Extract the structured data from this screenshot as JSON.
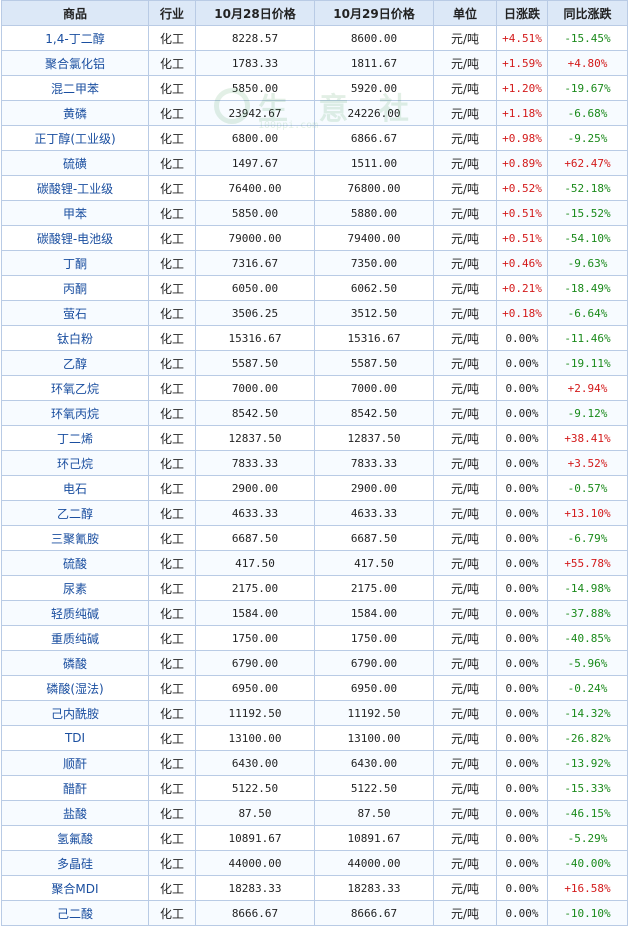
{
  "table": {
    "headers": [
      "商品",
      "行业",
      "10月28日价格",
      "10月29日价格",
      "单位",
      "日涨跌",
      "同比涨跌"
    ],
    "rows": [
      [
        "1,4-丁二醇",
        "化工",
        "8228.57",
        "8600.00",
        "元/吨",
        "+4.51%",
        "-15.45%"
      ],
      [
        "聚合氯化铝",
        "化工",
        "1783.33",
        "1811.67",
        "元/吨",
        "+1.59%",
        "+4.80%"
      ],
      [
        "混二甲苯",
        "化工",
        "5850.00",
        "5920.00",
        "元/吨",
        "+1.20%",
        "-19.67%"
      ],
      [
        "黄磷",
        "化工",
        "23942.67",
        "24226.00",
        "元/吨",
        "+1.18%",
        "-6.68%"
      ],
      [
        "正丁醇(工业级)",
        "化工",
        "6800.00",
        "6866.67",
        "元/吨",
        "+0.98%",
        "-9.25%"
      ],
      [
        "硫磺",
        "化工",
        "1497.67",
        "1511.00",
        "元/吨",
        "+0.89%",
        "+62.47%"
      ],
      [
        "碳酸锂-工业级",
        "化工",
        "76400.00",
        "76800.00",
        "元/吨",
        "+0.52%",
        "-52.18%"
      ],
      [
        "甲苯",
        "化工",
        "5850.00",
        "5880.00",
        "元/吨",
        "+0.51%",
        "-15.52%"
      ],
      [
        "碳酸锂-电池级",
        "化工",
        "79000.00",
        "79400.00",
        "元/吨",
        "+0.51%",
        "-54.10%"
      ],
      [
        "丁酮",
        "化工",
        "7316.67",
        "7350.00",
        "元/吨",
        "+0.46%",
        "-9.63%"
      ],
      [
        "丙酮",
        "化工",
        "6050.00",
        "6062.50",
        "元/吨",
        "+0.21%",
        "-18.49%"
      ],
      [
        "萤石",
        "化工",
        "3506.25",
        "3512.50",
        "元/吨",
        "+0.18%",
        "-6.64%"
      ],
      [
        "钛白粉",
        "化工",
        "15316.67",
        "15316.67",
        "元/吨",
        "0.00%",
        "-11.46%"
      ],
      [
        "乙醇",
        "化工",
        "5587.50",
        "5587.50",
        "元/吨",
        "0.00%",
        "-19.11%"
      ],
      [
        "环氧乙烷",
        "化工",
        "7000.00",
        "7000.00",
        "元/吨",
        "0.00%",
        "+2.94%"
      ],
      [
        "环氧丙烷",
        "化工",
        "8542.50",
        "8542.50",
        "元/吨",
        "0.00%",
        "-9.12%"
      ],
      [
        "丁二烯",
        "化工",
        "12837.50",
        "12837.50",
        "元/吨",
        "0.00%",
        "+38.41%"
      ],
      [
        "环己烷",
        "化工",
        "7833.33",
        "7833.33",
        "元/吨",
        "0.00%",
        "+3.52%"
      ],
      [
        "电石",
        "化工",
        "2900.00",
        "2900.00",
        "元/吨",
        "0.00%",
        "-0.57%"
      ],
      [
        "乙二醇",
        "化工",
        "4633.33",
        "4633.33",
        "元/吨",
        "0.00%",
        "+13.10%"
      ],
      [
        "三聚氰胺",
        "化工",
        "6687.50",
        "6687.50",
        "元/吨",
        "0.00%",
        "-6.79%"
      ],
      [
        "硫酸",
        "化工",
        "417.50",
        "417.50",
        "元/吨",
        "0.00%",
        "+55.78%"
      ],
      [
        "尿素",
        "化工",
        "2175.00",
        "2175.00",
        "元/吨",
        "0.00%",
        "-14.98%"
      ],
      [
        "轻质纯碱",
        "化工",
        "1584.00",
        "1584.00",
        "元/吨",
        "0.00%",
        "-37.88%"
      ],
      [
        "重质纯碱",
        "化工",
        "1750.00",
        "1750.00",
        "元/吨",
        "0.00%",
        "-40.85%"
      ],
      [
        "磷酸",
        "化工",
        "6790.00",
        "6790.00",
        "元/吨",
        "0.00%",
        "-5.96%"
      ],
      [
        "磷酸(湿法)",
        "化工",
        "6950.00",
        "6950.00",
        "元/吨",
        "0.00%",
        "-0.24%"
      ],
      [
        "己内酰胺",
        "化工",
        "11192.50",
        "11192.50",
        "元/吨",
        "0.00%",
        "-14.32%"
      ],
      [
        "TDI",
        "化工",
        "13100.00",
        "13100.00",
        "元/吨",
        "0.00%",
        "-26.82%"
      ],
      [
        "顺酐",
        "化工",
        "6430.00",
        "6430.00",
        "元/吨",
        "0.00%",
        "-13.92%"
      ],
      [
        "醋酐",
        "化工",
        "5122.50",
        "5122.50",
        "元/吨",
        "0.00%",
        "-15.33%"
      ],
      [
        "盐酸",
        "化工",
        "87.50",
        "87.50",
        "元/吨",
        "0.00%",
        "-46.15%"
      ],
      [
        "氢氟酸",
        "化工",
        "10891.67",
        "10891.67",
        "元/吨",
        "0.00%",
        "-5.29%"
      ],
      [
        "多晶硅",
        "化工",
        "44000.00",
        "44000.00",
        "元/吨",
        "0.00%",
        "-40.00%"
      ],
      [
        "聚合MDI",
        "化工",
        "18283.33",
        "18283.33",
        "元/吨",
        "0.00%",
        "+16.58%"
      ],
      [
        "己二酸",
        "化工",
        "8666.67",
        "8666.67",
        "元/吨",
        "0.00%",
        "-10.10%"
      ]
    ]
  },
  "watermark": {
    "text": "生 意 社",
    "sub": "100ppi.com"
  },
  "colors": {
    "rise": "#d31a1a",
    "fall": "#1a8a1a",
    "name": "#1b4fa0",
    "header_bg": "#dce8f7",
    "border": "#b9cbe5"
  }
}
